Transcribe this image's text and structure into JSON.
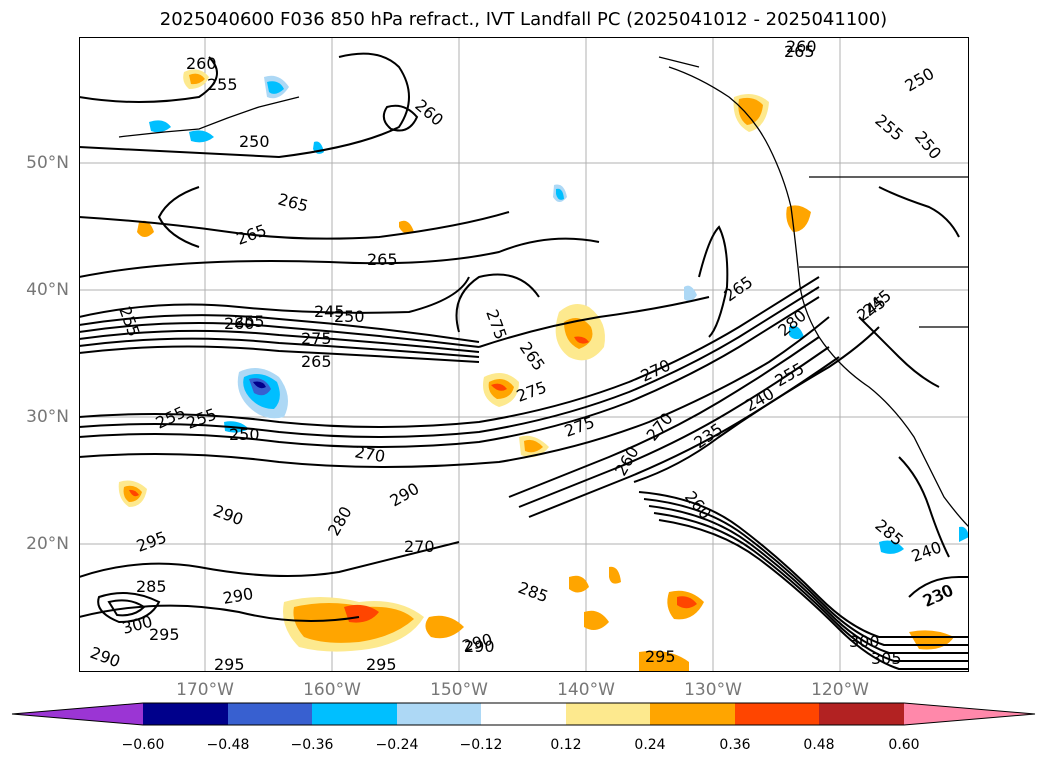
{
  "title": "2025040600 F036 850 hPa refract., IVT Landfall PC (2025041012 - 2025041100)",
  "lat_labels": [
    "50°N",
    "40°N",
    "30°N",
    "20°N"
  ],
  "lon_labels": [
    "170°W",
    "160°W",
    "150°W",
    "140°W",
    "130°W",
    "120°W"
  ],
  "colorbar": {
    "ticks": [
      "−0.60",
      "−0.48",
      "−0.36",
      "−0.24",
      "−0.12",
      "0.12",
      "0.24",
      "0.36",
      "0.48",
      "0.60"
    ],
    "colors": {
      "under": "#9b35d4",
      "b1": "#00008b",
      "b2": "#3860d0",
      "b3": "#00bfff",
      "b4": "#add8f5",
      "b5": "#ffffff",
      "b6": "#fde98e",
      "b7": "#ffa500",
      "b8": "#ff4500",
      "b9": "#b22222",
      "over": "#ff88aa"
    }
  },
  "contour_labels": [
    "260",
    "255",
    "265",
    "250",
    "260",
    "250",
    "250",
    "255",
    "260",
    "265",
    "265",
    "265",
    "245",
    "255",
    "255",
    "250",
    "245",
    "275",
    "260",
    "265",
    "275",
    "265",
    "275",
    "255",
    "255",
    "250",
    "270",
    "275",
    "270",
    "265",
    "255",
    "240",
    "270",
    "260",
    "280",
    "260",
    "235",
    "290",
    "290",
    "280",
    "270",
    "295",
    "285",
    "290",
    "300",
    "295",
    "290",
    "285",
    "290",
    "295",
    "295",
    "290",
    "295",
    "285",
    "230",
    "300",
    "305",
    "240",
    "245",
    "230"
  ]
}
